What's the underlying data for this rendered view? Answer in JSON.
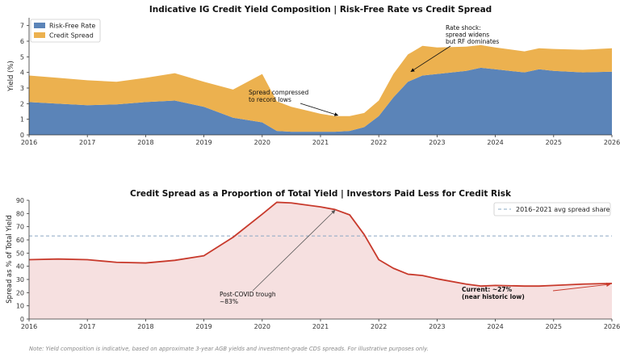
{
  "note": "Note: Yield composition is indicative, based on approximate 3-year AGB yields and investment-grade CDS spreads. For illustrative purposes only.",
  "chart_data": [
    {
      "type": "area",
      "stacked": true,
      "title": "Indicative IG Credit Yield Composition  |  Risk-Free Rate vs Credit Spread",
      "ylabel": "Yield (%)",
      "xlim": [
        2016,
        2026
      ],
      "ylim": [
        0,
        7.5
      ],
      "x_ticks": [
        "2016",
        "2017",
        "2018",
        "2019",
        "2020",
        "2021",
        "2022",
        "2023",
        "2024",
        "2025",
        "2026"
      ],
      "y_ticks": [
        "0",
        "1",
        "2",
        "3",
        "4",
        "5",
        "6",
        "7"
      ],
      "legend": "top-left",
      "x": [
        2016,
        2016.5,
        2017,
        2017.5,
        2018,
        2018.5,
        2019,
        2019.5,
        2020,
        2020.25,
        2020.5,
        2021,
        2021.25,
        2021.5,
        2021.75,
        2022,
        2022.25,
        2022.5,
        2022.75,
        2023,
        2023.5,
        2023.75,
        2024,
        2024.5,
        2024.75,
        2025,
        2025.5,
        2026
      ],
      "series": [
        {
          "name": "Risk-Free Rate",
          "color": "#5b84b8",
          "values": [
            2.1,
            2.0,
            1.9,
            1.95,
            2.1,
            2.2,
            1.8,
            1.1,
            0.8,
            0.25,
            0.2,
            0.2,
            0.2,
            0.25,
            0.5,
            1.2,
            2.4,
            3.4,
            3.8,
            3.9,
            4.1,
            4.3,
            4.2,
            4.0,
            4.2,
            4.1,
            4.0,
            4.05
          ]
        },
        {
          "name": "Credit Spread",
          "color": "#ecb14f",
          "values": [
            1.7,
            1.65,
            1.6,
            1.45,
            1.55,
            1.75,
            1.6,
            1.8,
            3.1,
            1.9,
            1.6,
            1.15,
            1.0,
            0.95,
            0.9,
            1.0,
            1.5,
            1.75,
            1.9,
            1.7,
            1.55,
            1.45,
            1.4,
            1.35,
            1.35,
            1.4,
            1.45,
            1.5
          ]
        }
      ],
      "annotations": [
        {
          "lines": [
            "Spread compressed",
            "to record lows"
          ],
          "x": 2021.3,
          "y": 1.2
        },
        {
          "lines": [
            "Rate shock:",
            "spread widens",
            "but RF dominates"
          ],
          "x": 2022.55,
          "y": 4.05
        }
      ]
    },
    {
      "type": "line",
      "title": "Credit Spread as a Proportion of Total Yield  |  Investors Paid Less for Credit Risk",
      "ylabel": "Spread as % of Total Yield",
      "xlim": [
        2016,
        2026
      ],
      "ylim": [
        0,
        90
      ],
      "x_ticks": [
        "2016",
        "2017",
        "2018",
        "2019",
        "2020",
        "2021",
        "2022",
        "2023",
        "2024",
        "2025",
        "2026"
      ],
      "y_ticks": [
        "0",
        "10",
        "20",
        "30",
        "40",
        "50",
        "60",
        "70",
        "80",
        "90"
      ],
      "legend": "top-right",
      "series": [
        {
          "name": "",
          "color": "#c83a2c",
          "x": [
            2016,
            2016.5,
            2017,
            2017.5,
            2018,
            2018.5,
            2019,
            2019.5,
            2020,
            2020.25,
            2020.5,
            2021,
            2021.25,
            2021.5,
            2021.75,
            2022,
            2022.25,
            2022.5,
            2022.75,
            2023,
            2023.5,
            2023.75,
            2024,
            2024.5,
            2024.75,
            2025,
            2025.5,
            2026
          ],
          "values": [
            45,
            45.5,
            45,
            43,
            42.5,
            44.5,
            48,
            62,
            79.5,
            88.5,
            88,
            85,
            83,
            79,
            64,
            45,
            38.5,
            34,
            33,
            30.5,
            26.5,
            25,
            25.5,
            25,
            25,
            25.5,
            26.5,
            27
          ]
        }
      ],
      "reference_line": {
        "name": "2016–2021 avg spread share",
        "value": 63,
        "color": "#8aa8c4"
      },
      "annotations": [
        {
          "lines": [
            "Post-COVID trough",
            "~83%"
          ],
          "x": 2021.25,
          "y": 82.5
        },
        {
          "lines": [
            "Current: ~27%",
            "(near historic low)"
          ],
          "x": 2026,
          "y": 27,
          "color": "#c83a2c"
        }
      ]
    }
  ]
}
